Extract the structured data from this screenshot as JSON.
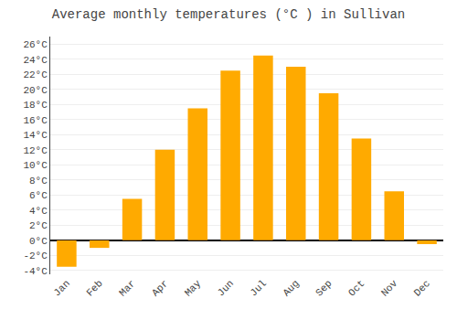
{
  "chart_data": {
    "type": "bar",
    "title": "Average monthly temperatures (°C ) in Sullivan",
    "categories": [
      "Jan",
      "Feb",
      "Mar",
      "Apr",
      "May",
      "Jun",
      "Jul",
      "Aug",
      "Sep",
      "Oct",
      "Nov",
      "Dec"
    ],
    "values": [
      -3.5,
      -1.0,
      5.5,
      12.0,
      17.5,
      22.5,
      24.5,
      23.0,
      19.5,
      13.5,
      6.5,
      -0.5
    ],
    "color": "#FFAA00",
    "ylim": [
      -4.5,
      27
    ],
    "yticks": [
      {
        "value": -4,
        "label": "-4°C"
      },
      {
        "value": -2,
        "label": "-2°C"
      },
      {
        "value": 0,
        "label": "0°C"
      },
      {
        "value": 2,
        "label": "2°C"
      },
      {
        "value": 4,
        "label": "4°C"
      },
      {
        "value": 6,
        "label": "6°C"
      },
      {
        "value": 8,
        "label": "8°C"
      },
      {
        "value": 10,
        "label": "10°C"
      },
      {
        "value": 12,
        "label": "12°C"
      },
      {
        "value": 14,
        "label": "14°C"
      },
      {
        "value": 16,
        "label": "16°C"
      },
      {
        "value": 18,
        "label": "18°C"
      },
      {
        "value": 20,
        "label": "20°C"
      },
      {
        "value": 22,
        "label": "22°C"
      },
      {
        "value": 24,
        "label": "24°C"
      },
      {
        "value": 26,
        "label": "26°C"
      }
    ],
    "grid": true
  }
}
